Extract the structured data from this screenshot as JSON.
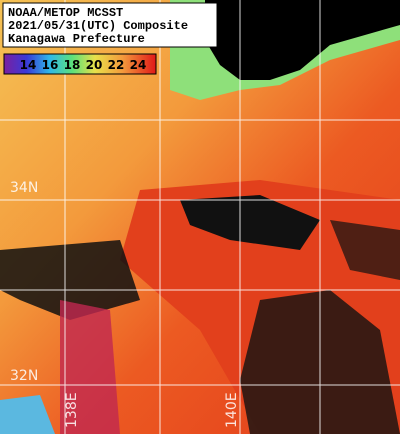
{
  "header": {
    "lines": [
      "NOAA/METOP MCSST",
      "2021/05/31(UTC) Composite",
      "Kanagawa Prefecture"
    ]
  },
  "legend": {
    "ticks": [
      14,
      16,
      18,
      20,
      22,
      24
    ]
  },
  "grid_labels": {
    "latitudes": [
      "34N",
      "32N"
    ],
    "longitudes": [
      "138E",
      "140E"
    ]
  }
}
